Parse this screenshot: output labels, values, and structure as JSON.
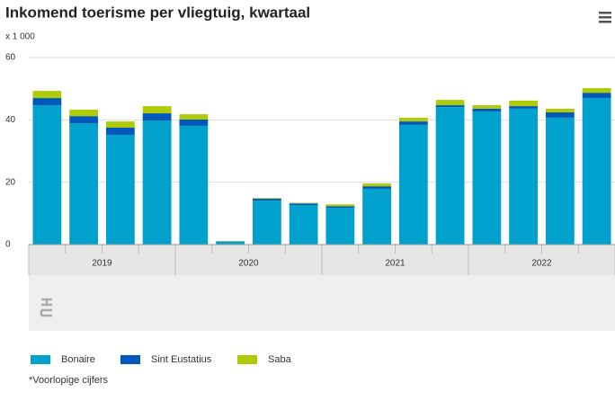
{
  "chart_data": {
    "type": "stacked_bar",
    "title": "Inkomend toerisme per vliegtuig, kwartaal",
    "unit_label": "x 1 000",
    "categories": [
      null,
      null,
      null,
      null,
      null,
      null,
      null,
      null,
      null,
      null,
      null,
      null,
      null,
      null,
      null,
      null
    ],
    "x_groups": [
      "2019",
      "2020",
      "2021",
      "2022"
    ],
    "series": [
      {
        "name": "Bonaire",
        "color": "#00a1cd",
        "values": [
          44.7,
          38.9,
          35.2,
          39.8,
          38.1,
          0.9,
          14.1,
          12.7,
          11.8,
          17.9,
          38.4,
          44.1,
          42.7,
          43.6,
          40.7,
          47.0
        ]
      },
      {
        "name": "Sint Eustatius",
        "color": "#0058b8",
        "values": [
          2.3,
          2.3,
          2.3,
          2.3,
          2.0,
          0.1,
          0.6,
          0.5,
          0.5,
          0.8,
          1.1,
          0.6,
          0.9,
          0.8,
          1.7,
          1.7
        ]
      },
      {
        "name": "Saba",
        "color": "#afcb05",
        "values": [
          2.3,
          2.1,
          2.0,
          2.3,
          1.7,
          0.1,
          0.2,
          0.2,
          0.6,
          0.9,
          1.2,
          1.7,
          1.1,
          1.8,
          1.2,
          1.5
        ]
      }
    ],
    "ylim": [
      0,
      60
    ],
    "yticks": [
      0,
      20,
      40,
      60
    ],
    "grid": true,
    "footnote": "*Voorlopige cijfers"
  }
}
